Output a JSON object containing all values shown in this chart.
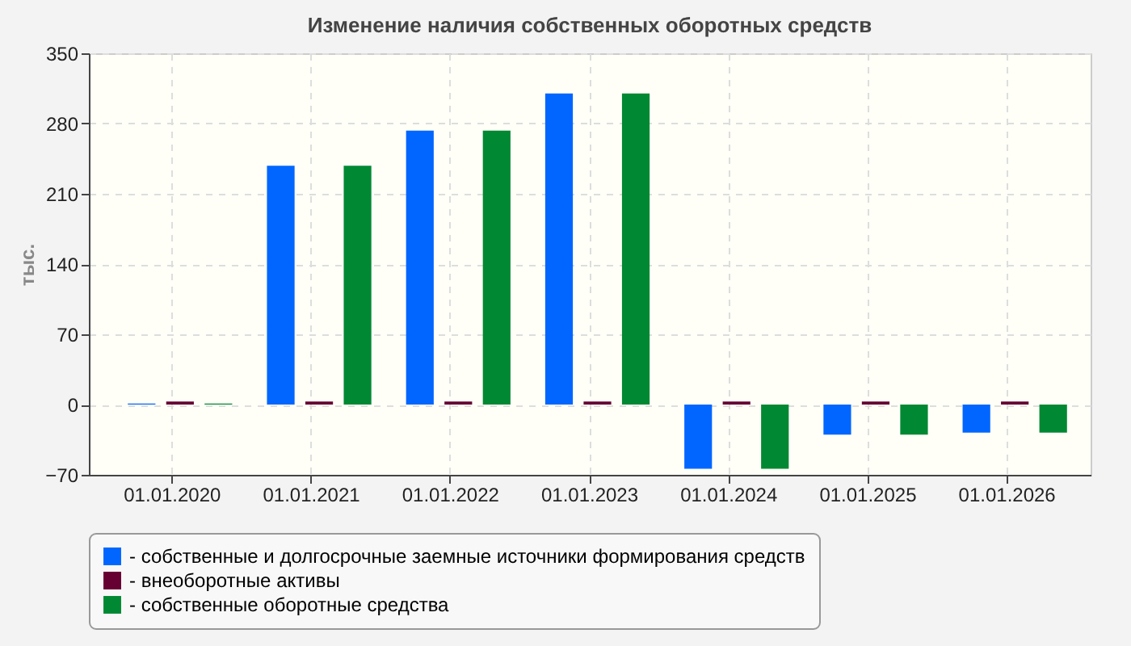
{
  "chart_data": {
    "type": "bar",
    "title": "Изменение наличия собственных оборотных средств",
    "ylabel": "тыс.",
    "categories": [
      "01.01.2020",
      "01.01.2021",
      "01.01.2022",
      "01.01.2023",
      "01.01.2024",
      "01.01.2025",
      "01.01.2026"
    ],
    "series": [
      {
        "name": "- собственные и долгосрочные заемные источники формирования средств",
        "color": "#0066ff",
        "values": [
          1,
          238,
          273,
          310,
          -64,
          -30,
          -28
        ]
      },
      {
        "name": "- внеоборотные активы",
        "color": "#660033",
        "values": [
          3,
          3,
          3,
          3,
          3,
          3,
          3
        ]
      },
      {
        "name": "- собственные оборотные средства",
        "color": "#008833",
        "values": [
          1,
          238,
          273,
          310,
          -64,
          -30,
          -28
        ]
      }
    ],
    "ylim": [
      -70,
      350
    ],
    "yticks": [
      -70,
      0,
      70,
      140,
      210,
      280,
      350
    ],
    "grid": true,
    "legend": "bottom"
  }
}
